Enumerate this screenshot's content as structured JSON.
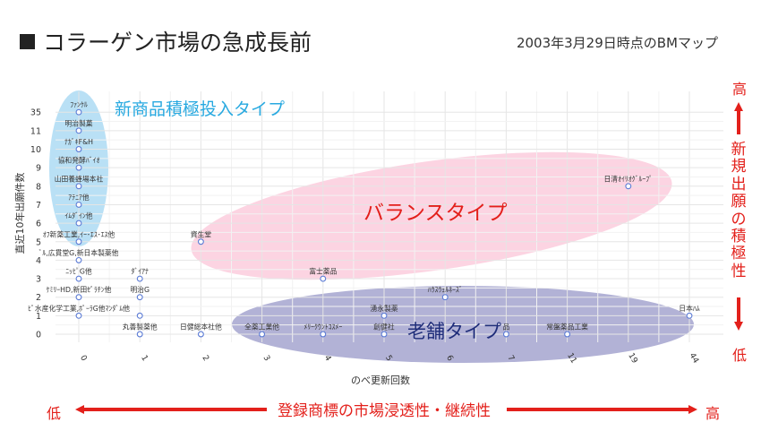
{
  "title": "コラーゲン市場の急成長前",
  "subtitle": "2003年3月29日時点のBMマップ",
  "colors": {
    "accent": "#e3201b",
    "point": "#5b7bd5",
    "blue_zone": "#a8d8f2",
    "pink_zone": "#fbc6d8",
    "navy_zone": "#8e8ec2"
  },
  "axes": {
    "vertical_title": "新規出願の積極性",
    "vertical_high": "高",
    "vertical_low": "低",
    "horizontal_title": "登録商標の市場浸透性・継続性",
    "horizontal_low": "低",
    "horizontal_high": "高"
  },
  "zones": {
    "new_product": "新商品積極投入タイプ",
    "balance": "バランスタイプ",
    "established": "老舗タイプ"
  },
  "chart_data": {
    "type": "scatter",
    "xlabel": "のべ更新回数",
    "ylabel": "直近10年出願件数",
    "x_ticks": [
      "0",
      "1",
      "2",
      "3",
      "4",
      "5",
      "6",
      "7",
      "11",
      "19",
      "44"
    ],
    "y_ticks": [
      "0",
      "1",
      "2",
      "3",
      "4",
      "5",
      "6",
      "7",
      "8",
      "9",
      "10",
      "11",
      "35"
    ],
    "grid": true,
    "points": [
      {
        "x": "0",
        "y": "35",
        "label": "ﾌｧﾝｹﾙ"
      },
      {
        "x": "0",
        "y": "11",
        "label": "明治製菓"
      },
      {
        "x": "0",
        "y": "10",
        "label": "ﾅｶﾞｷF&H"
      },
      {
        "x": "0",
        "y": "9",
        "label": "協和発酵ﾊﾞｲｵ"
      },
      {
        "x": "0",
        "y": "8",
        "label": "山田養蜂場本社"
      },
      {
        "x": "0",
        "y": "7",
        "label": "ｱﾃﾆｱ他"
      },
      {
        "x": "0",
        "y": "6",
        "label": "ｲﾑﾀﾞｲﾝ他"
      },
      {
        "x": "0",
        "y": "5",
        "label": "ｵﾌ新薬工業,ｲｰ･ｴｽ･ｴｽ他"
      },
      {
        "x": "0",
        "y": "4",
        "label": "ﾞﾙ,広貫堂G,新日本製薬他"
      },
      {
        "x": "0",
        "y": "3",
        "label": "ﾆｯﾋﾟG他"
      },
      {
        "x": "0",
        "y": "2",
        "label": "ｹﾐﾘｰHD,新田ｾﾞﾗﾁﾝ他"
      },
      {
        "x": "0",
        "y": "1",
        "label": "ﾋﾟ水産化学工業,ﾎﾟｰﾗG他ﾏﾝﾀﾞﾑ他"
      },
      {
        "x": "1",
        "y": "3",
        "label": "ﾀﾞｲｱﾅ"
      },
      {
        "x": "1",
        "y": "2",
        "label": "明治G"
      },
      {
        "x": "1",
        "y": "1",
        "label": ""
      },
      {
        "x": "1",
        "y": "0",
        "label": "丸善製薬他"
      },
      {
        "x": "2",
        "y": "5",
        "label": "資生堂"
      },
      {
        "x": "2",
        "y": "0",
        "label": "日健総本社他"
      },
      {
        "x": "3",
        "y": "0",
        "label": "全薬工業他"
      },
      {
        "x": "4",
        "y": "3",
        "label": "富士薬品"
      },
      {
        "x": "4",
        "y": "0",
        "label": "ﾒﾘｰｸｳﾝﾄｺｽﾒｰ"
      },
      {
        "x": "5",
        "y": "1",
        "label": "湧永製薬"
      },
      {
        "x": "5",
        "y": "0",
        "label": "創健社"
      },
      {
        "x": "6",
        "y": "2",
        "label": "ﾊｳｽｳｪﾙﾈｰｽﾞ"
      },
      {
        "x": "7",
        "y": "0",
        "label": "品"
      },
      {
        "x": "11",
        "y": "0",
        "label": "常盤薬品工業"
      },
      {
        "x": "19",
        "y": "8",
        "label": "日清ｵｲﾘｵｸﾞﾙｰﾌﾟ"
      },
      {
        "x": "44",
        "y": "1",
        "label": "日本ﾊﾑ"
      }
    ]
  }
}
